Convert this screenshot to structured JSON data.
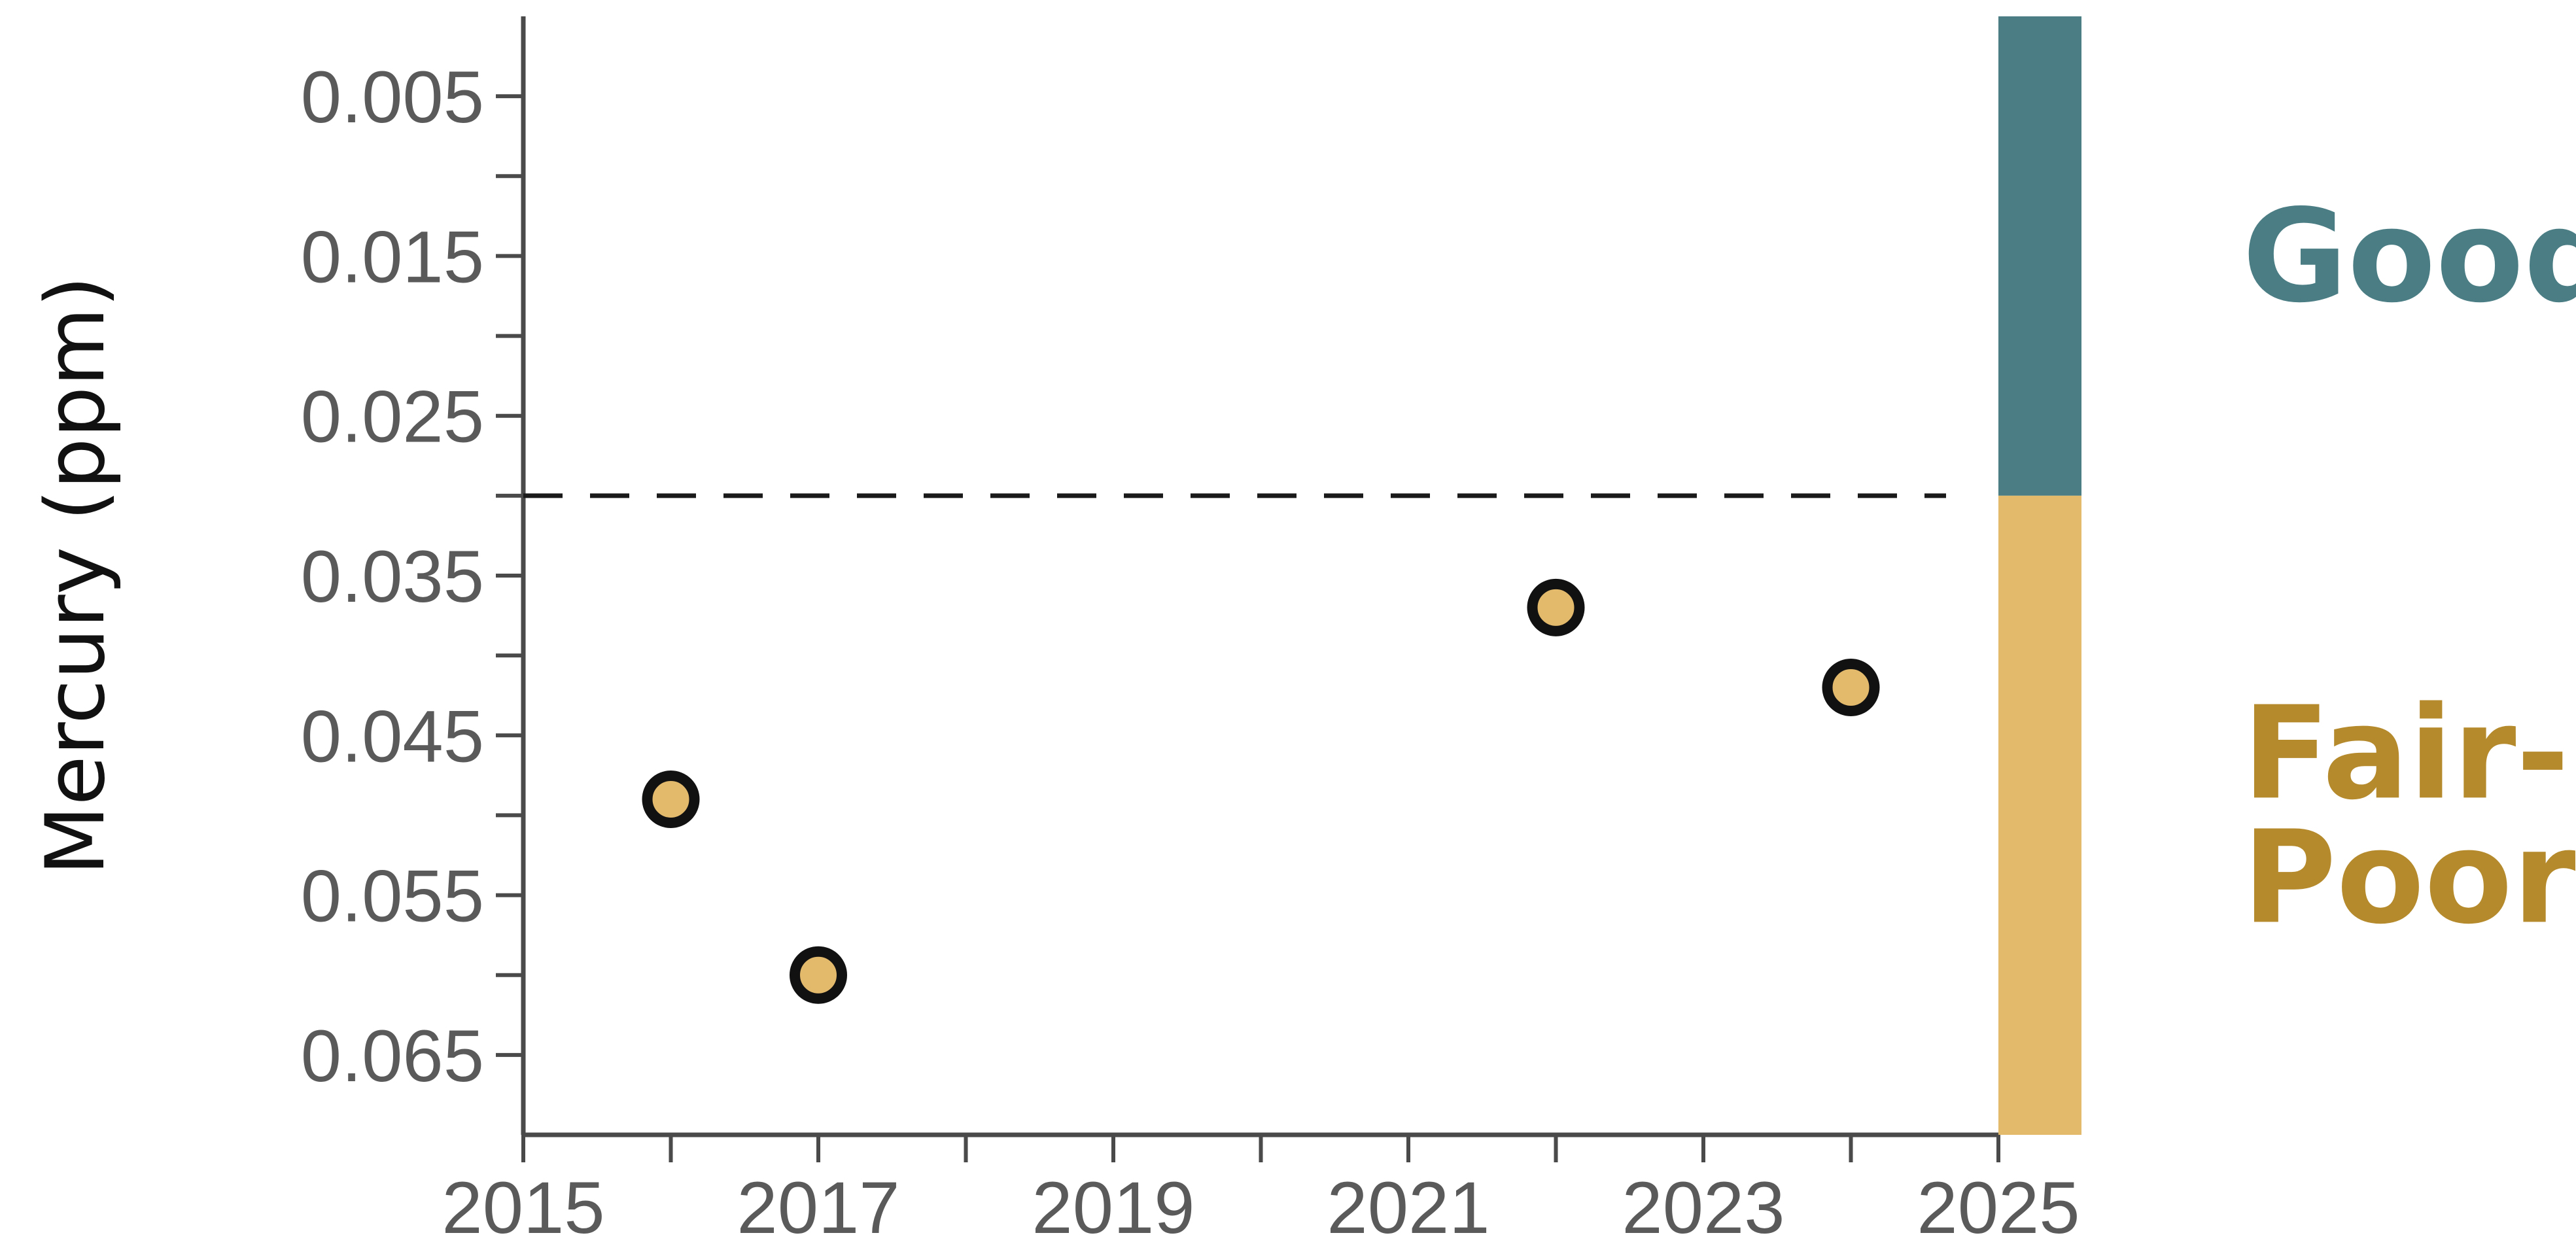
{
  "chart_data": {
    "type": "scatter",
    "title": "",
    "xlabel": "",
    "ylabel": "Mercury (ppm)",
    "y_inverted": true,
    "xlim": [
      2015,
      2025
    ],
    "ylim": [
      0,
      0.07
    ],
    "x_ticks": [
      2015,
      2016,
      2017,
      2018,
      2019,
      2020,
      2021,
      2022,
      2023,
      2024,
      2025
    ],
    "x_tick_labels": [
      "2015",
      "2017",
      "2019",
      "2021",
      "2023",
      "2025"
    ],
    "y_ticks": [
      0.005,
      0.01,
      0.015,
      0.02,
      0.025,
      0.03,
      0.035,
      0.04,
      0.045,
      0.05,
      0.055,
      0.06,
      0.065
    ],
    "y_tick_labels": [
      "0.005",
      "0.015",
      "0.025",
      "0.035",
      "0.045",
      "0.055",
      "0.065"
    ],
    "grid": false,
    "threshold": {
      "y": 0.03,
      "style": "dashed"
    },
    "points": [
      {
        "x": 2016,
        "y": 0.049
      },
      {
        "x": 2017,
        "y": 0.06
      },
      {
        "x": 2022,
        "y": 0.037
      },
      {
        "x": 2024,
        "y": 0.042
      }
    ],
    "point_color": "#E3B96C",
    "bands": [
      {
        "label": "Good",
        "from": 0,
        "to": 0.03,
        "color": "#4A7D84",
        "text_color": "#4A7D84"
      },
      {
        "label": "Fair-\nPoor",
        "from": 0.03,
        "to": 0.07,
        "color": "#E3B96C",
        "text_color": "#B58A2C"
      }
    ]
  }
}
